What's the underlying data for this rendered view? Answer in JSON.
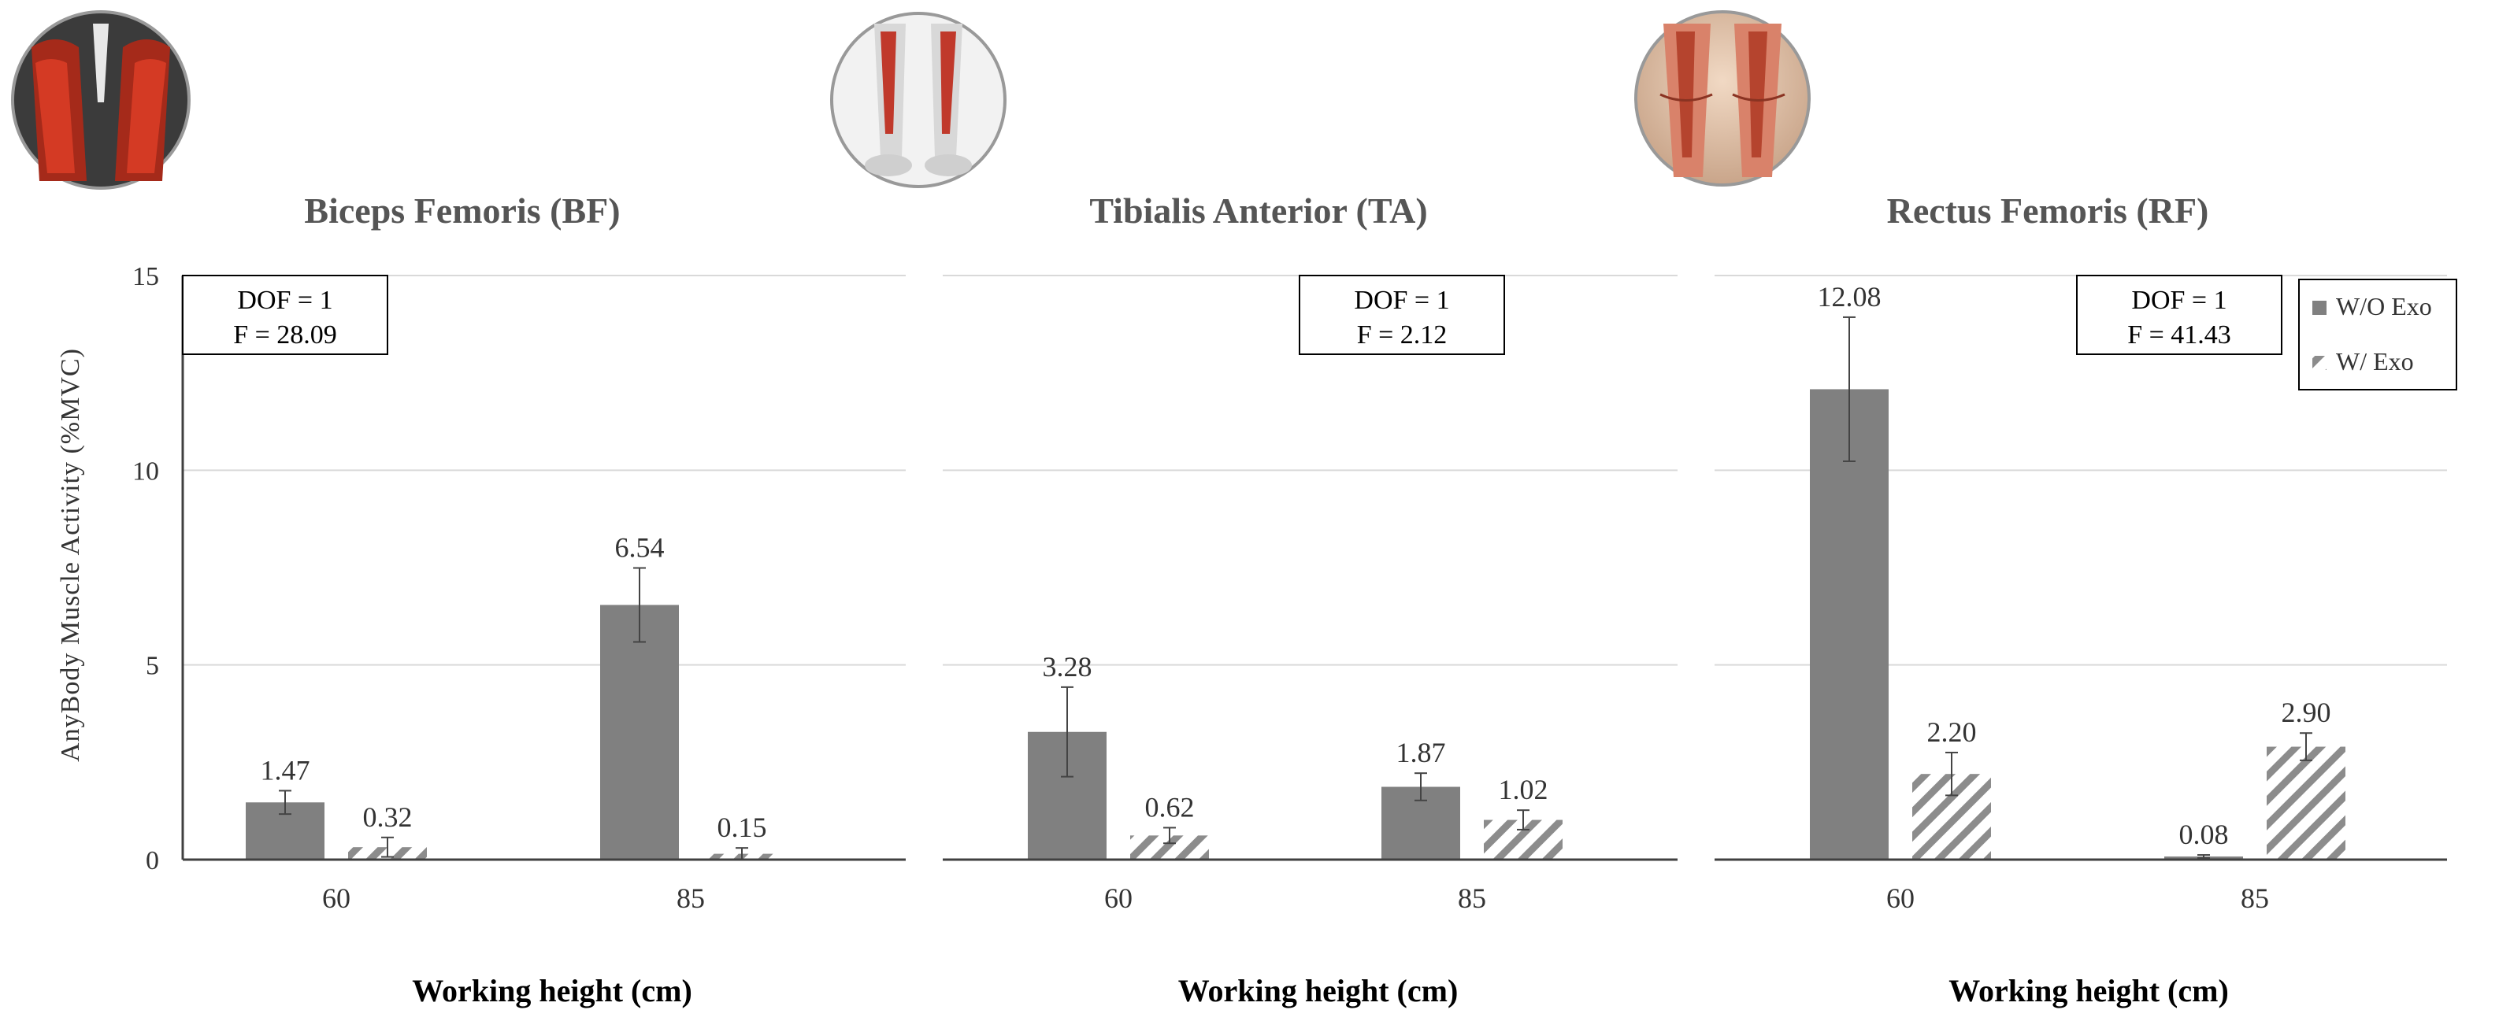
{
  "ylabel": "AnyBody Muscle Activity (%MVC)",
  "legend": [
    {
      "label": "W/O Exo",
      "style": "solid"
    },
    {
      "label": "W/ Exo",
      "style": "hatched"
    }
  ],
  "colors": {
    "bar": "#808080",
    "hatch": "#8c8c8c",
    "grid": "#d9d9d9",
    "axis": "#404040",
    "title": "#555555",
    "text": "#333333"
  },
  "chart_data": [
    {
      "type": "bar",
      "title": "Biceps Femoris (BF)",
      "xlabel": "Working height (cm)",
      "ylabel": "AnyBody Muscle Activity (%MVC)",
      "ylim": [
        0,
        15
      ],
      "yticks": [
        0,
        5,
        10,
        15
      ],
      "categories": [
        "60",
        "85"
      ],
      "series": [
        {
          "name": "W/O Exo",
          "values": [
            1.47,
            6.54
          ],
          "labels": [
            "1.47",
            "6.54"
          ],
          "errors": [
            0.3,
            0.95
          ]
        },
        {
          "name": "W/ Exo",
          "values": [
            0.32,
            0.15
          ],
          "labels": [
            "0.32",
            "0.15"
          ],
          "errors": [
            0.25,
            0.15
          ]
        }
      ],
      "stats": {
        "line1": "DOF = 1",
        "line2": "F = 28.09",
        "position": "top-left"
      }
    },
    {
      "type": "bar",
      "title": "Tibialis Anterior (TA)",
      "xlabel": "Working height (cm)",
      "ylim": [
        0,
        15
      ],
      "yticks": [
        0,
        5,
        10,
        15
      ],
      "categories": [
        "60",
        "85"
      ],
      "series": [
        {
          "name": "W/O Exo",
          "values": [
            3.28,
            1.87
          ],
          "labels": [
            "3.28",
            "1.87"
          ],
          "errors": [
            1.15,
            0.35
          ]
        },
        {
          "name": "W/ Exo",
          "values": [
            0.62,
            1.02
          ],
          "labels": [
            "0.62",
            "1.02"
          ],
          "errors": [
            0.2,
            0.25
          ]
        }
      ],
      "stats": {
        "line1": "DOF = 1",
        "line2": "F = 2.12",
        "position": "top-right"
      }
    },
    {
      "type": "bar",
      "title": "Rectus Femoris (RF)",
      "xlabel": "Working height (cm)",
      "ylim": [
        0,
        15
      ],
      "yticks": [
        0,
        5,
        10,
        15
      ],
      "categories": [
        "60",
        "85"
      ],
      "series": [
        {
          "name": "W/O Exo",
          "values": [
            12.08,
            0.08
          ],
          "labels": [
            "12.08",
            "0.08"
          ],
          "errors": [
            1.85,
            0.04
          ]
        },
        {
          "name": "W/ Exo",
          "values": [
            2.2,
            2.9
          ],
          "labels": [
            "2.20",
            "2.90"
          ],
          "errors": [
            0.55,
            0.35
          ]
        }
      ],
      "stats": {
        "line1": "DOF = 1",
        "line2": "F = 41.43",
        "position": "top-right"
      }
    }
  ]
}
